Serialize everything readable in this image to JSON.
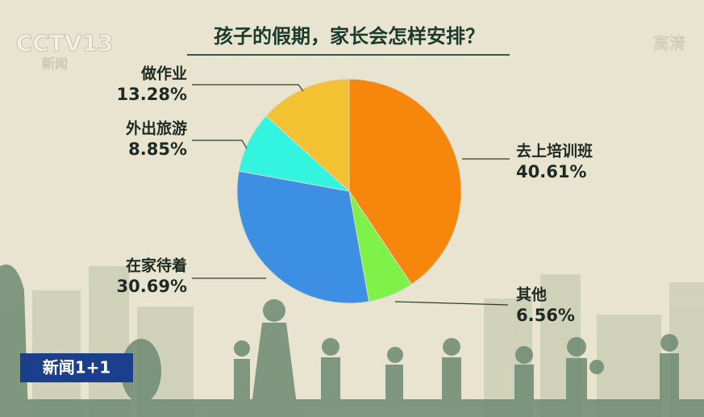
{
  "channel_logo": "CCTV13",
  "channel_sub": "新闻",
  "hd_badge": "高清",
  "program_badge": "新闻1+1",
  "chart_data": {
    "type": "pie",
    "title": "孩子的假期，家长会怎样安排？",
    "categories": [
      "去上培训班",
      "其他",
      "在家待着",
      "外出旅游",
      "做作业"
    ],
    "values": [
      40.61,
      6.56,
      30.69,
      8.85,
      13.28
    ],
    "value_labels": [
      "40.61%",
      "6.56%",
      "30.69%",
      "8.85%",
      "13.28%"
    ],
    "colors": [
      "#f7860c",
      "#7ff24a",
      "#3c8fe2",
      "#33f5df",
      "#f2c232"
    ]
  }
}
